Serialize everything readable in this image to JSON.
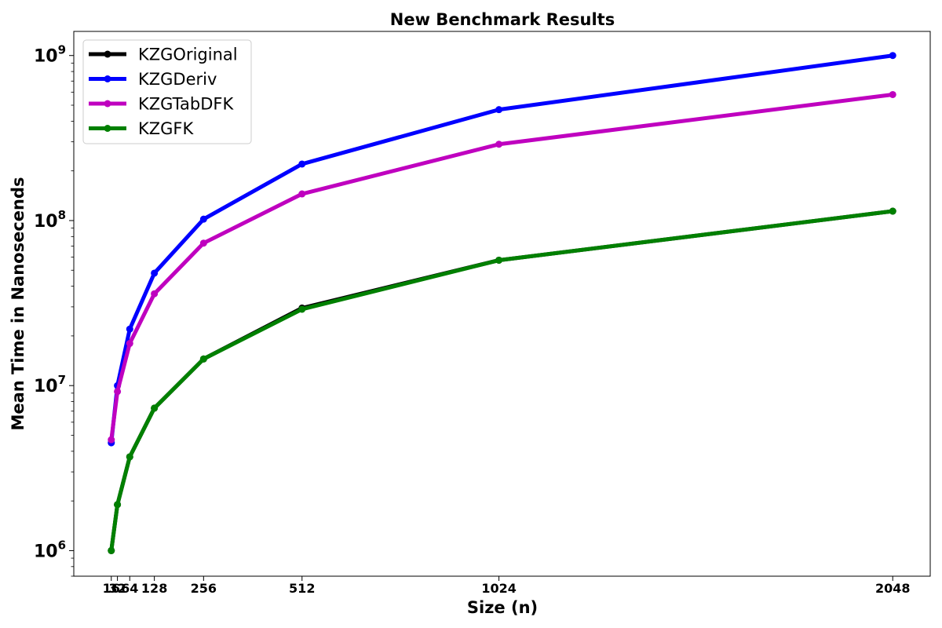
{
  "chart_data": {
    "type": "line",
    "title": "New Benchmark Results",
    "xlabel": "Size (n)",
    "ylabel": "Mean Time in Nanosecends",
    "yscale": "log",
    "xlim": [
      -81.5,
      2145.5
    ],
    "ylim": [
      700000,
      1400000000
    ],
    "x": [
      16,
      32,
      64,
      128,
      256,
      512,
      1024,
      2048
    ],
    "xticks": [
      "16",
      "32",
      "64",
      "128",
      "256",
      "512",
      "1024",
      "2048"
    ],
    "yticks": [
      {
        "base": "10",
        "exp": "6",
        "value": 1000000
      },
      {
        "base": "10",
        "exp": "7",
        "value": 10000000
      },
      {
        "base": "10",
        "exp": "8",
        "value": 100000000
      },
      {
        "base": "10",
        "exp": "9",
        "value": 1000000000
      }
    ],
    "grid": false,
    "legend_position": "upper-left",
    "series": [
      {
        "name": "KZGOriginal",
        "color": "#000000",
        "values": [
          1000000,
          1900000,
          3700000,
          7300000,
          14500000,
          29500000,
          57500000,
          114000000
        ]
      },
      {
        "name": "KZGDeriv",
        "color": "#0000ff",
        "values": [
          4500000,
          10000000,
          22000000,
          48000000,
          102000000,
          220000000,
          470000000,
          1000000000
        ]
      },
      {
        "name": "KZGTabDFK",
        "color": "#bf00bf",
        "values": [
          4700000,
          9200000,
          18000000,
          36000000,
          73000000,
          145000000,
          290000000,
          580000000
        ]
      },
      {
        "name": "KZGFK",
        "color": "#008000",
        "values": [
          1000000,
          1900000,
          3700000,
          7300000,
          14500000,
          29000000,
          57500000,
          114000000
        ]
      }
    ]
  }
}
